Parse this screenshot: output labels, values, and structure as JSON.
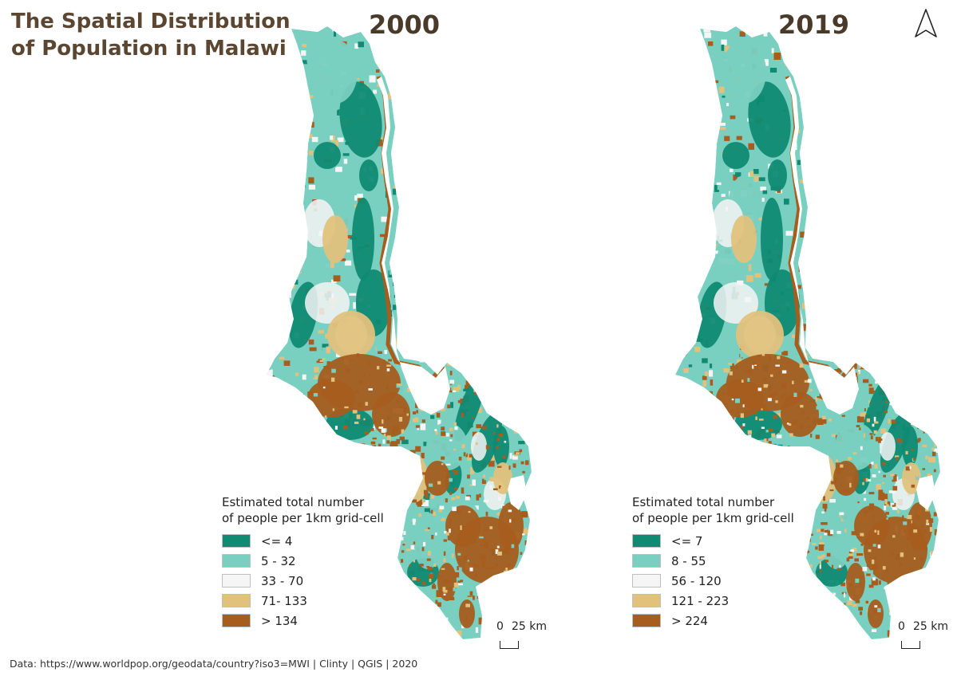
{
  "title": {
    "line1": "The Spatial Distribution",
    "line2": "of Population in Malawi"
  },
  "panels": [
    {
      "year": "2000",
      "legend": {
        "title_line1": "Estimated total number",
        "title_line2": "of people per 1km grid-cell",
        "classes": [
          {
            "label": "<= 4",
            "color": "#0f8a73"
          },
          {
            "label": "5 - 32",
            "color": "#79cfc0"
          },
          {
            "label": "33 - 70",
            "color": "#f5f5f5"
          },
          {
            "label": "71- 133",
            "color": "#e2c17d"
          },
          {
            "label": "> 134",
            "color": "#a65d1e"
          }
        ]
      },
      "scale_bar": {
        "zero": "0",
        "distance": "25 km"
      }
    },
    {
      "year": "2019",
      "legend": {
        "title_line1": "Estimated total number",
        "title_line2": "of people per 1km grid-cell",
        "classes": [
          {
            "label": "<= 7",
            "color": "#0f8a73"
          },
          {
            "label": "8 - 55",
            "color": "#79cfc0"
          },
          {
            "label": "56 - 120",
            "color": "#f5f5f5"
          },
          {
            "label": "121 - 223",
            "color": "#e2c17d"
          },
          {
            "label": "> 224",
            "color": "#a65d1e"
          }
        ]
      },
      "scale_bar": {
        "zero": "0",
        "distance": "25 km"
      }
    }
  ],
  "north_arrow_icon": "north-arrow-icon",
  "footer": "Data: https://www.worldpop.org/geodata/country?iso3=MWI  | Clinty  | QGIS  | 2020",
  "colors": {
    "title": "#5b4631",
    "year": "#4a3a2a"
  }
}
